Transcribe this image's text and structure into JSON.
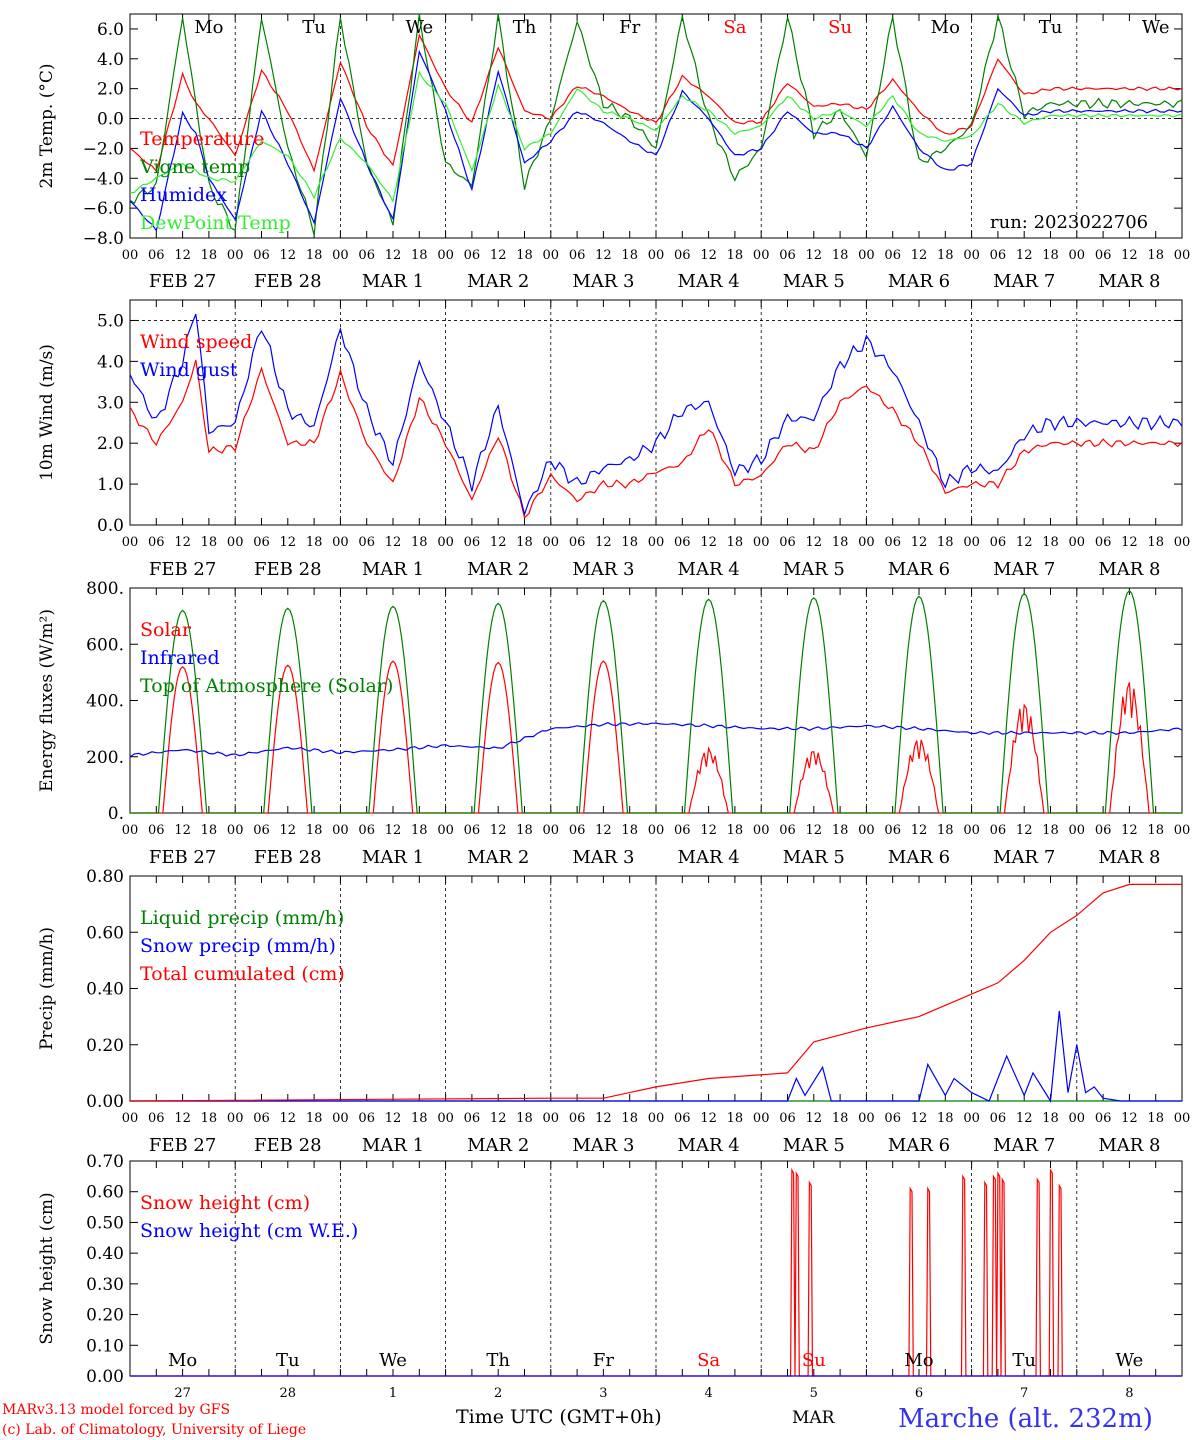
{
  "meta": {
    "run_label": "run: 2023022706",
    "credit_line1": "MARv3.13 model forced by GFS",
    "credit_line2": "(c) Lab. of Climatology, University of Liege",
    "x_title": "Time UTC (GMT+0h)",
    "month_label": "MAR",
    "station": "Marche (alt. 232m)",
    "hour_ticks": [
      "00",
      "06",
      "12",
      "18"
    ],
    "date_labels": [
      "FEB 27",
      "FEB 28",
      "MAR  1",
      "MAR  2",
      "MAR  3",
      "MAR  4",
      "MAR  5",
      "MAR  6",
      "MAR  7",
      "MAR  8"
    ],
    "weekdays": [
      "Mo",
      "Tu",
      "We",
      "Th",
      "Fr",
      "Sa",
      "Su",
      "Mo",
      "Tu",
      "We"
    ],
    "day_numbers": [
      "27",
      "28",
      "1",
      "2",
      "3",
      "4",
      "5",
      "6",
      "7",
      "8"
    ],
    "colors": {
      "red": "#ff0000",
      "green": "#008000",
      "blue": "#0000ff",
      "lightgreen": "#33ee33",
      "weekend": "#ff0000",
      "station": "#3333ee"
    }
  },
  "chart_data": [
    {
      "type": "line",
      "ylabel": "2m Temp. (°C)",
      "ylim": [
        -8,
        7
      ],
      "yticks": [
        "6.0",
        "4.0",
        "2.0",
        "0.0",
        "−2.0",
        "−4.0",
        "−6.0",
        "−8.0"
      ],
      "ytick_values": [
        6,
        4,
        2,
        0,
        -2,
        -4,
        -6,
        -8
      ],
      "ref_line": 0,
      "x_unit": "hours since 2023-02-27 00 UTC",
      "series": [
        {
          "name": "Temperature",
          "color": "#ff0000",
          "x": [
            0,
            6,
            12,
            15,
            18,
            24,
            30,
            36,
            42,
            48,
            54,
            60,
            66,
            72,
            78,
            84,
            90,
            96,
            102,
            108,
            114,
            120,
            126,
            132,
            138,
            144,
            150,
            156,
            162,
            168,
            174,
            180,
            186,
            192,
            198,
            204,
            210,
            216,
            222,
            228,
            234,
            240
          ],
          "y": [
            -2.0,
            -3.5,
            2.9,
            1.0,
            0.0,
            -2.5,
            3.2,
            0.5,
            -3.5,
            3.8,
            -0.5,
            -3.2,
            5.6,
            2.0,
            -0.3,
            4.8,
            0.5,
            0.0,
            2.2,
            1.5,
            0.5,
            -0.3,
            2.8,
            1.5,
            -0.3,
            -0.2,
            2.4,
            0.8,
            1.0,
            0.6,
            2.6,
            0.5,
            -1.1,
            -0.5,
            4.0,
            1.6,
            2.0,
            2.0,
            2.0,
            2.0,
            2.0,
            2.0
          ]
        },
        {
          "name": "Vigne temp",
          "color": "#008000",
          "x": [
            0,
            6,
            12,
            15,
            18,
            24,
            30,
            36,
            42,
            48,
            54,
            60,
            66,
            72,
            78,
            84,
            90,
            96,
            102,
            108,
            114,
            120,
            126,
            132,
            138,
            144,
            150,
            156,
            162,
            168,
            174,
            180,
            186,
            192,
            198,
            204,
            210,
            216,
            222,
            228,
            234,
            240
          ],
          "y": [
            -5.5,
            -4.5,
            6.8,
            1.0,
            -4.5,
            -7.5,
            6.8,
            -2.0,
            -7.5,
            6.8,
            -3.0,
            -7.0,
            6.8,
            -3.0,
            -4.5,
            6.8,
            -4.5,
            0.0,
            6.5,
            1.0,
            0.0,
            -2.0,
            6.8,
            0.0,
            -4.0,
            -2.0,
            6.8,
            -1.0,
            0.5,
            -2.5,
            6.8,
            -3.0,
            -2.0,
            -0.5,
            6.8,
            0.3,
            1.0,
            1.0,
            1.0,
            1.0,
            1.0,
            1.0
          ]
        },
        {
          "name": "Humidex",
          "color": "#0000ff",
          "x": [
            0,
            6,
            12,
            15,
            18,
            24,
            30,
            36,
            42,
            48,
            54,
            60,
            66,
            72,
            78,
            84,
            90,
            96,
            102,
            108,
            114,
            120,
            126,
            132,
            138,
            144,
            150,
            156,
            162,
            168,
            174,
            180,
            186,
            192,
            198,
            204,
            210,
            216,
            222,
            228,
            234,
            240
          ],
          "y": [
            -5.5,
            -7.5,
            0.3,
            -1.0,
            -4.0,
            -6.8,
            0.5,
            -3.0,
            -7.0,
            1.4,
            -3.0,
            -6.8,
            4.5,
            0.5,
            -4.8,
            3.2,
            -3.0,
            -1.5,
            0.5,
            -0.3,
            -1.5,
            -2.5,
            1.8,
            0.0,
            -2.5,
            -2.0,
            0.5,
            -1.0,
            -1.0,
            -2.0,
            0.8,
            -2.0,
            -3.5,
            -3.0,
            2.0,
            0.2,
            0.5,
            0.5,
            0.5,
            0.5,
            0.5,
            0.5
          ]
        },
        {
          "name": "DewPoint Temp",
          "color": "#33ee33",
          "x": [
            0,
            6,
            12,
            15,
            18,
            24,
            30,
            36,
            42,
            48,
            54,
            60,
            66,
            72,
            78,
            84,
            90,
            96,
            102,
            108,
            114,
            120,
            126,
            132,
            138,
            144,
            150,
            156,
            162,
            168,
            174,
            180,
            186,
            192,
            198,
            204,
            210,
            216,
            222,
            228,
            234,
            240
          ],
          "y": [
            -5.0,
            -4.0,
            -3.0,
            -3.5,
            -4.0,
            -4.2,
            -1.5,
            -2.5,
            -5.2,
            -1.3,
            -3.0,
            -5.5,
            3.0,
            1.0,
            -3.5,
            2.2,
            -2.0,
            -1.0,
            2.0,
            0.5,
            0.0,
            -0.8,
            1.5,
            0.5,
            -1.0,
            -0.5,
            1.5,
            0.0,
            0.5,
            -0.5,
            1.5,
            -1.0,
            -1.5,
            -1.2,
            1.0,
            -0.3,
            0.2,
            0.2,
            0.2,
            0.2,
            0.2,
            0.2
          ]
        }
      ]
    },
    {
      "type": "line",
      "ylabel": "10m Wind (m/s)",
      "ylim": [
        0,
        5.5
      ],
      "yticks": [
        "5.0",
        "4.0",
        "3.0",
        "2.0",
        "1.0",
        "0.0"
      ],
      "ytick_values": [
        5,
        4,
        3,
        2,
        1,
        0
      ],
      "ref_line": 5,
      "x_unit": "hours since 2023-02-27 00 UTC",
      "series": [
        {
          "name": "Wind speed",
          "color": "#ff0000",
          "x": [
            0,
            6,
            12,
            15,
            18,
            24,
            30,
            36,
            42,
            48,
            54,
            60,
            66,
            72,
            78,
            84,
            90,
            96,
            102,
            108,
            114,
            120,
            126,
            132,
            138,
            144,
            150,
            156,
            162,
            168,
            174,
            180,
            186,
            192,
            198,
            204,
            210,
            216,
            222,
            228,
            234,
            240
          ],
          "y": [
            2.8,
            2.0,
            3.0,
            4.0,
            1.8,
            1.9,
            3.8,
            2.0,
            2.0,
            3.7,
            2.0,
            1.0,
            3.1,
            2.0,
            0.6,
            2.2,
            0.2,
            1.2,
            0.6,
            1.0,
            1.0,
            1.3,
            1.5,
            2.4,
            1.0,
            1.2,
            2.0,
            1.8,
            3.0,
            3.4,
            2.8,
            2.0,
            0.8,
            1.0,
            1.0,
            1.8,
            2.0,
            2.0,
            2.0,
            2.0,
            2.0,
            2.0
          ]
        },
        {
          "name": "Wind gust",
          "color": "#0000ff",
          "x": [
            0,
            6,
            12,
            15,
            18,
            24,
            30,
            36,
            42,
            48,
            54,
            60,
            66,
            72,
            78,
            84,
            90,
            96,
            102,
            108,
            114,
            120,
            126,
            132,
            138,
            144,
            150,
            156,
            162,
            168,
            174,
            180,
            186,
            192,
            198,
            204,
            210,
            216,
            222,
            228,
            234,
            240
          ],
          "y": [
            3.7,
            2.5,
            4.0,
            5.3,
            2.3,
            2.5,
            4.9,
            2.8,
            2.4,
            4.8,
            2.8,
            1.5,
            4.0,
            2.5,
            1.0,
            2.9,
            0.3,
            1.6,
            1.0,
            1.4,
            1.6,
            2.0,
            2.8,
            3.0,
            1.3,
            1.6,
            2.6,
            2.6,
            3.9,
            4.5,
            3.8,
            2.5,
            1.0,
            1.4,
            1.3,
            2.2,
            2.5,
            2.5,
            2.5,
            2.5,
            2.5,
            2.5
          ]
        }
      ]
    },
    {
      "type": "line",
      "ylabel": "Energy fluxes (W/m²)",
      "ylim": [
        0,
        800
      ],
      "yticks": [
        "800.",
        "600.",
        "400.",
        "200.",
        "0."
      ],
      "ytick_values": [
        800,
        600,
        400,
        200,
        0
      ],
      "x_unit": "hours since 2023-02-27 00 UTC",
      "series": [
        {
          "name": "Solar",
          "color": "#ff0000",
          "kind": "solar",
          "peaks": [
            520,
            525,
            540,
            535,
            540,
            235,
            230,
            270,
            400,
            480
          ]
        },
        {
          "name": "Infrared",
          "color": "#0000ff",
          "x": [
            0,
            12,
            24,
            36,
            48,
            60,
            72,
            84,
            96,
            108,
            120,
            132,
            144,
            156,
            168,
            180,
            192,
            204,
            216,
            228,
            240
          ],
          "y": [
            205,
            225,
            205,
            232,
            215,
            225,
            240,
            230,
            300,
            315,
            318,
            310,
            300,
            300,
            310,
            300,
            285,
            285,
            285,
            285,
            300
          ]
        },
        {
          "name": "Top of Atmosphere (Solar)",
          "color": "#008000",
          "kind": "toa",
          "peaks": [
            720,
            728,
            735,
            745,
            755,
            760,
            765,
            770,
            780,
            790
          ]
        }
      ]
    },
    {
      "type": "line",
      "ylabel": "Precip (mm/h)",
      "ylim": [
        0,
        0.8
      ],
      "yticks": [
        "0.80",
        "0.60",
        "0.40",
        "0.20",
        "0.00"
      ],
      "ytick_values": [
        0.8,
        0.6,
        0.4,
        0.2,
        0
      ],
      "x_unit": "hours since 2023-02-27 00 UTC",
      "series": [
        {
          "name": "Liquid precip (mm/h)",
          "color": "#008000",
          "x": [
            0,
            240
          ],
          "y": [
            0,
            0
          ]
        },
        {
          "name": "Snow precip (mm/h)",
          "color": "#0000ff",
          "x": [
            0,
            96,
            150,
            152,
            154,
            158,
            160,
            180,
            182,
            186,
            188,
            192,
            196,
            200,
            204,
            206,
            210,
            212,
            214,
            216,
            218,
            220,
            222,
            226,
            240
          ],
          "y": [
            0,
            0,
            0,
            0.08,
            0.02,
            0.12,
            0.0,
            0.0,
            0.13,
            0.02,
            0.08,
            0.03,
            0.0,
            0.16,
            0.02,
            0.1,
            0.0,
            0.32,
            0.03,
            0.2,
            0.03,
            0.05,
            0.01,
            0.0,
            0.0
          ]
        },
        {
          "name": "Total cumulated (cm)",
          "color": "#ff0000",
          "x": [
            0,
            96,
            108,
            120,
            132,
            150,
            156,
            168,
            180,
            192,
            198,
            204,
            210,
            216,
            222,
            228,
            234,
            240
          ],
          "y": [
            0,
            0.01,
            0.01,
            0.05,
            0.08,
            0.1,
            0.21,
            0.26,
            0.3,
            0.38,
            0.42,
            0.5,
            0.6,
            0.66,
            0.74,
            0.77,
            0.77,
            0.77
          ]
        }
      ]
    },
    {
      "type": "line",
      "ylabel": "Snow height (cm)",
      "ylim": [
        0,
        0.7
      ],
      "yticks": [
        "0.70",
        "0.60",
        "0.50",
        "0.40",
        "0.30",
        "0.20",
        "0.10",
        "0.00"
      ],
      "ytick_values": [
        0.7,
        0.6,
        0.5,
        0.4,
        0.3,
        0.2,
        0.1,
        0
      ],
      "x_unit": "hours since 2023-02-27 00 UTC",
      "series": [
        {
          "name": "Snow height (cm)",
          "color": "#ff0000",
          "kind": "spikes",
          "spikes": [
            [
              151,
              0.67
            ],
            [
              152,
              0.66
            ],
            [
              155,
              0.63
            ],
            [
              178,
              0.61
            ],
            [
              182,
              0.61
            ],
            [
              190,
              0.65
            ],
            [
              195,
              0.63
            ],
            [
              197,
              0.65
            ],
            [
              198,
              0.66
            ],
            [
              199,
              0.64
            ],
            [
              207,
              0.64
            ],
            [
              210,
              0.67
            ],
            [
              212,
              0.62
            ]
          ]
        },
        {
          "name": "Snow height (cm W.E.)",
          "color": "#0000ff",
          "x": [
            0,
            240
          ],
          "y": [
            0,
            0
          ]
        }
      ]
    }
  ]
}
